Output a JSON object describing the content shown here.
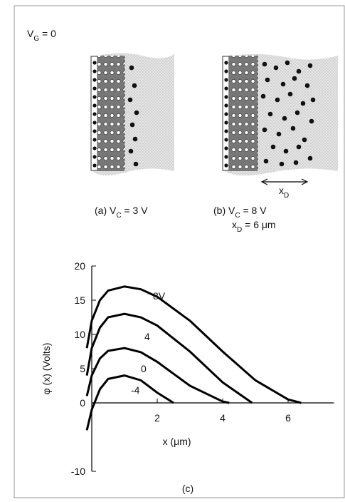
{
  "figure": {
    "vg_label": {
      "main": "V",
      "sub": "G",
      "tail": " = 0"
    },
    "panel_a": {
      "prefix": "(a) V",
      "sub": "C",
      "tail": " = 3 V"
    },
    "panel_b": {
      "prefix": "(b) V",
      "sub": "C",
      "tail": " = 8 V",
      "xd_main": "x",
      "xd_sub": "D",
      "xd_tail": " = 6 μm"
    },
    "arrow_label": {
      "main": "x",
      "sub": "D"
    },
    "panel_c": "(c)"
  },
  "chart_data": {
    "type": "line",
    "ylabel": "φ (x) (Volts)",
    "xlabel": "x (μm)",
    "xlim": [
      -0.2,
      7.4
    ],
    "ylim": [
      -10,
      20
    ],
    "xticks": [
      2,
      4,
      6
    ],
    "yticks": [
      -10,
      0,
      5,
      10,
      15,
      20
    ],
    "series": [
      {
        "name": "8V",
        "color": "#000000",
        "x": [
          -0.15,
          0,
          0.25,
          0.5,
          1,
          1.5,
          2,
          3,
          4,
          5,
          6,
          6.4
        ],
        "values": [
          8,
          12,
          15,
          16.4,
          17,
          16.6,
          15.5,
          12,
          7.5,
          3.3,
          0.5,
          0
        ]
      },
      {
        "name": "4",
        "color": "#000000",
        "x": [
          -0.15,
          0,
          0.25,
          0.5,
          1,
          1.5,
          2,
          3,
          4,
          4.9
        ],
        "values": [
          4,
          8,
          11,
          12.5,
          13,
          12.5,
          11.3,
          7.5,
          3,
          0
        ]
      },
      {
        "name": "0",
        "color": "#000000",
        "x": [
          -0.15,
          0,
          0.25,
          0.5,
          1,
          1.5,
          2,
          3,
          4,
          4.2
        ],
        "values": [
          1,
          4,
          6.5,
          7.6,
          8,
          7.4,
          6,
          2.5,
          0.2,
          0
        ]
      },
      {
        "name": "-4",
        "color": "#000000",
        "x": [
          -0.15,
          0,
          0.25,
          0.5,
          1,
          1.5,
          2,
          2.5
        ],
        "values": [
          -4,
          -1,
          2,
          3.5,
          4,
          3.3,
          1.5,
          0
        ]
      }
    ]
  }
}
